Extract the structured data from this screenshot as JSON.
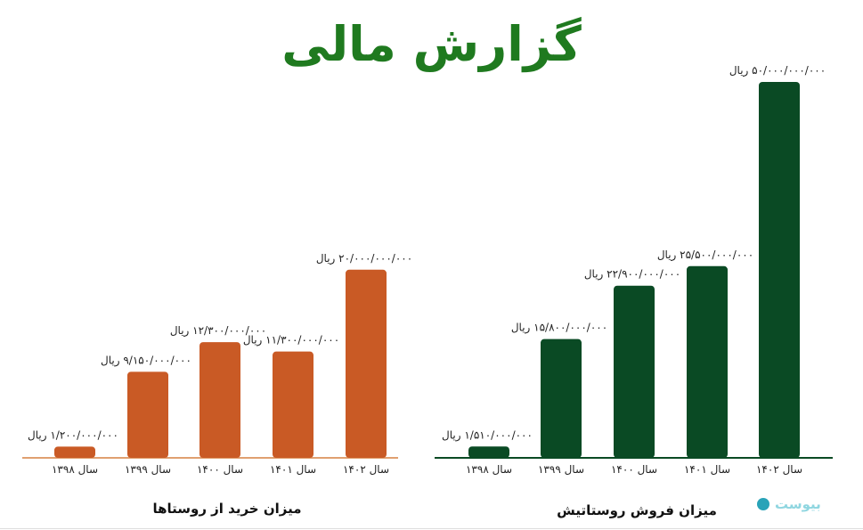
{
  "page": {
    "title": "گزارش مالی"
  },
  "logo": {
    "text": "بیوست",
    "icon": "circle-logo-icon"
  },
  "colors": {
    "title": "#1f7a1f",
    "purchase_bars": "#c95a25",
    "sales_bars": "#0a4a24",
    "purchase_axis": "#e0a070",
    "sales_axis": "#0a4a24"
  },
  "chart_data": [
    {
      "type": "bar",
      "title": "میزان خرید از روستاها",
      "categories": [
        "سال ۱۳۹۸",
        "سال ۱۳۹۹",
        "سال ۱۴۰۰",
        "سال ۱۴۰۱",
        "سال ۱۴۰۲"
      ],
      "values": [
        1200000000,
        9150000000,
        12300000000,
        11300000000,
        20000000000
      ],
      "value_labels": [
        "۱/۲۰۰/۰۰۰/۰۰۰ ریال",
        "۹/۱۵۰/۰۰۰/۰۰۰ ریال",
        "۱۲/۳۰۰/۰۰۰/۰۰۰ ریال",
        "۱۱/۳۰۰/۰۰۰/۰۰۰ ریال",
        "۲۰/۰۰۰/۰۰۰/۰۰۰ ریال"
      ],
      "ylim": [
        0,
        25000000000
      ]
    },
    {
      "type": "bar",
      "title": "میزان فروش روستاتیش",
      "categories": [
        "سال ۱۳۹۸",
        "سال ۱۳۹۹",
        "سال ۱۴۰۰",
        "سال ۱۴۰۱",
        "سال ۱۴۰۲"
      ],
      "values": [
        1510000000,
        15800000000,
        22900000000,
        25500000000,
        50000000000
      ],
      "value_labels": [
        "۱/۵۱۰/۰۰۰/۰۰۰ ریال",
        "۱۵/۸۰۰/۰۰۰/۰۰۰ ریال",
        "۲۲/۹۰۰/۰۰۰/۰۰۰ ریال",
        "۲۵/۵۰۰/۰۰۰/۰۰۰ ریال",
        "۵۰/۰۰۰/۰۰۰/۰۰۰ ریال"
      ],
      "ylim": [
        0,
        50000000000
      ]
    }
  ]
}
